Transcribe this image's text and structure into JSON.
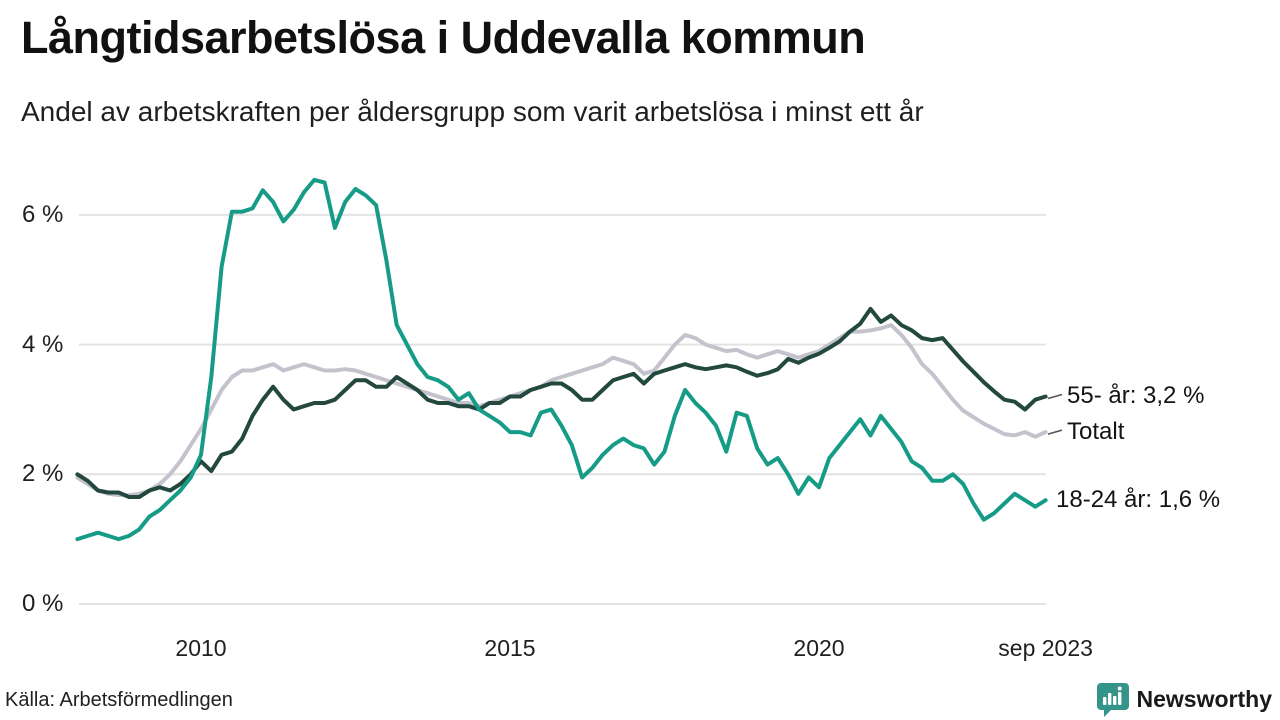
{
  "title": "Långtidsarbetslösa i Uddevalla kommun",
  "subtitle": "Andel av arbetskraften per åldersgrupp som varit arbetslösa i minst ett år",
  "source": "Källa: Arbetsförmedlingen",
  "logo": {
    "text": "Newsworthy",
    "color": "#35948a",
    "icon": "bar-chart-speech-bubble-icon"
  },
  "colors": {
    "series_18_24": "#169b87",
    "series_55": "#23493f",
    "series_total": "#c4c3cd",
    "grid": "#e3e3e3",
    "text": "#1a1a1a"
  },
  "chart_data": {
    "type": "line",
    "title": "Långtidsarbetslösa i Uddevalla kommun",
    "subtitle": "Andel av arbetskraften per åldersgrupp som varit arbetslösa i minst ett år",
    "unit": "% av arbetskraften",
    "grid": "horizontal-only",
    "legend_position": "end-of-line-labels",
    "x_axis": {
      "start_year": 2008.0,
      "step_years": 0.166667,
      "range": [
        2008.0,
        2023.667
      ],
      "ticks": [
        {
          "label": "2010",
          "year": 2010
        },
        {
          "label": "2015",
          "year": 2015
        },
        {
          "label": "2020",
          "year": 2020
        },
        {
          "label": "sep 2023",
          "year": 2023.667
        }
      ]
    },
    "y_axis": {
      "range": [
        0,
        6.8
      ],
      "ticks": [
        {
          "label": "6 %",
          "value": 6
        },
        {
          "label": "4 %",
          "value": 4
        },
        {
          "label": "2 %",
          "value": 2
        },
        {
          "label": "0 %",
          "value": 0
        }
      ]
    },
    "series": [
      {
        "name": "Totalt",
        "color": "#c4c3cd",
        "end_label": "Totalt",
        "end_value": 2.65,
        "leader_tick": true,
        "values": [
          1.95,
          1.85,
          1.75,
          1.7,
          1.68,
          1.68,
          1.7,
          1.75,
          1.85,
          2.0,
          2.2,
          2.45,
          2.7,
          3.0,
          3.3,
          3.5,
          3.6,
          3.6,
          3.65,
          3.7,
          3.6,
          3.65,
          3.7,
          3.65,
          3.6,
          3.6,
          3.62,
          3.6,
          3.55,
          3.5,
          3.45,
          3.4,
          3.35,
          3.3,
          3.25,
          3.2,
          3.15,
          3.1,
          3.1,
          3.05,
          3.1,
          3.15,
          3.2,
          3.25,
          3.3,
          3.35,
          3.45,
          3.5,
          3.55,
          3.6,
          3.65,
          3.7,
          3.8,
          3.75,
          3.7,
          3.55,
          3.6,
          3.8,
          4.0,
          4.15,
          4.1,
          4.0,
          3.95,
          3.9,
          3.92,
          3.85,
          3.8,
          3.85,
          3.9,
          3.85,
          3.8,
          3.85,
          3.9,
          4.0,
          4.1,
          4.2,
          4.2,
          4.22,
          4.25,
          4.3,
          4.15,
          3.95,
          3.7,
          3.55,
          3.35,
          3.15,
          2.98,
          2.88,
          2.78,
          2.7,
          2.62,
          2.6,
          2.65,
          2.58,
          2.65
        ]
      },
      {
        "name": "55- år",
        "color": "#23493f",
        "end_label": "55- år: 3,2 %",
        "end_value": 3.2,
        "leader_tick": true,
        "values": [
          2.0,
          1.9,
          1.75,
          1.72,
          1.72,
          1.65,
          1.65,
          1.75,
          1.8,
          1.75,
          1.85,
          2.0,
          2.2,
          2.05,
          2.3,
          2.35,
          2.55,
          2.9,
          3.15,
          3.35,
          3.15,
          3.0,
          3.05,
          3.1,
          3.1,
          3.15,
          3.3,
          3.45,
          3.45,
          3.35,
          3.35,
          3.5,
          3.4,
          3.3,
          3.15,
          3.1,
          3.1,
          3.05,
          3.05,
          3.0,
          3.1,
          3.1,
          3.2,
          3.2,
          3.3,
          3.35,
          3.4,
          3.4,
          3.3,
          3.15,
          3.15,
          3.3,
          3.45,
          3.5,
          3.55,
          3.4,
          3.55,
          3.6,
          3.65,
          3.7,
          3.65,
          3.62,
          3.65,
          3.68,
          3.65,
          3.58,
          3.52,
          3.56,
          3.62,
          3.78,
          3.72,
          3.8,
          3.86,
          3.95,
          4.05,
          4.2,
          4.32,
          4.55,
          4.35,
          4.45,
          4.3,
          4.22,
          4.1,
          4.07,
          4.1,
          3.92,
          3.74,
          3.58,
          3.42,
          3.28,
          3.15,
          3.12,
          3.0,
          3.15,
          3.2
        ]
      },
      {
        "name": "18-24 år",
        "color": "#169b87",
        "end_label": "18-24 år: 1,6 %",
        "end_value": 1.6,
        "leader_tick": false,
        "values": [
          1.0,
          1.05,
          1.1,
          1.05,
          1.0,
          1.05,
          1.15,
          1.35,
          1.45,
          1.6,
          1.75,
          1.95,
          2.3,
          3.5,
          5.2,
          6.05,
          6.05,
          6.1,
          6.38,
          6.2,
          5.9,
          6.08,
          6.35,
          6.54,
          6.5,
          5.8,
          6.2,
          6.4,
          6.3,
          6.15,
          5.3,
          4.3,
          4.0,
          3.7,
          3.5,
          3.45,
          3.35,
          3.15,
          3.25,
          3.0,
          2.9,
          2.8,
          2.65,
          2.65,
          2.6,
          2.95,
          3.0,
          2.75,
          2.45,
          1.95,
          2.1,
          2.3,
          2.45,
          2.55,
          2.45,
          2.4,
          2.15,
          2.35,
          2.9,
          3.3,
          3.1,
          2.95,
          2.75,
          2.35,
          2.95,
          2.9,
          2.4,
          2.15,
          2.25,
          2.0,
          1.7,
          1.95,
          1.8,
          2.25,
          2.45,
          2.65,
          2.85,
          2.6,
          2.9,
          2.7,
          2.5,
          2.2,
          2.1,
          1.9,
          1.9,
          2.0,
          1.85,
          1.55,
          1.3,
          1.4,
          1.55,
          1.7,
          1.6,
          1.5,
          1.6
        ]
      }
    ]
  }
}
